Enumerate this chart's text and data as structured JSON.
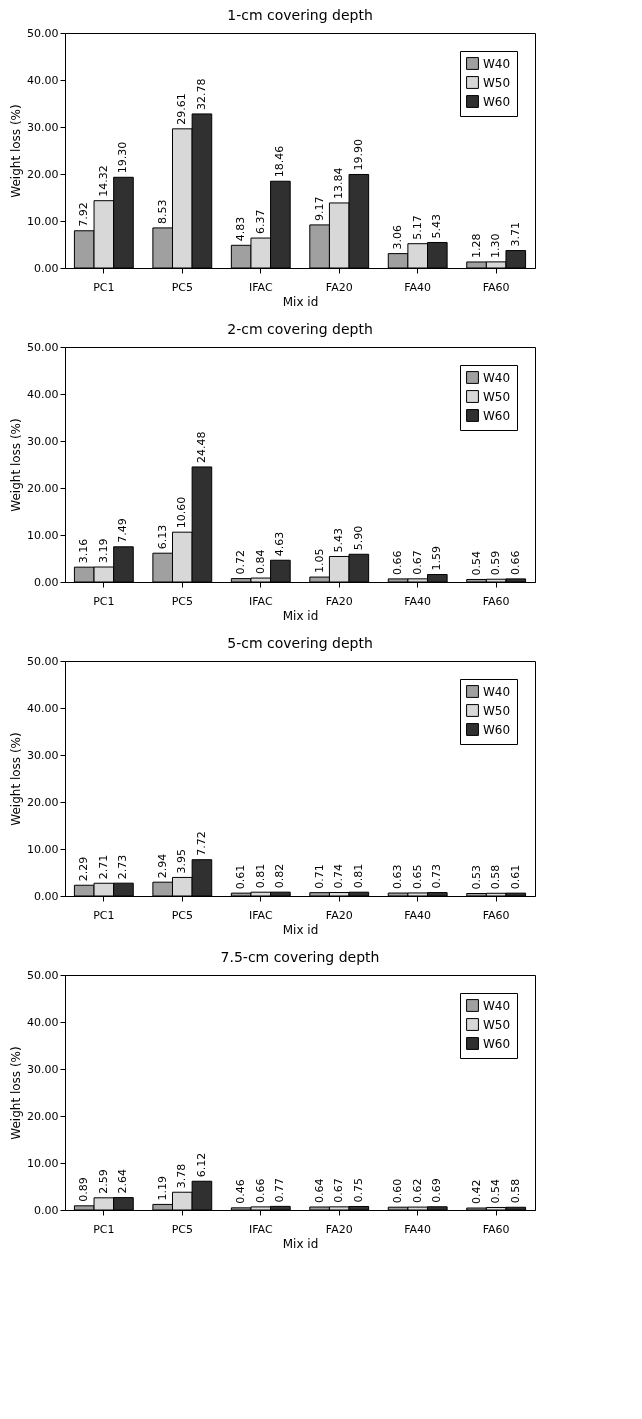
{
  "chart_data": [
    {
      "type": "bar",
      "title": "1-cm covering depth",
      "xlabel": "Mix id",
      "ylabel": "Weight loss (%)",
      "categories": [
        "PC1",
        "PC5",
        "IFAC",
        "FA20",
        "FA40",
        "FA60"
      ],
      "ylim": [
        0,
        50
      ],
      "yticks": [
        {
          "value": 0,
          "label": "0.00"
        },
        {
          "value": 10,
          "label": "10.00"
        },
        {
          "value": 20,
          "label": "20.00"
        },
        {
          "value": 30,
          "label": "30.00"
        },
        {
          "value": 40,
          "label": "40.00"
        },
        {
          "value": 50,
          "label": "50.00"
        }
      ],
      "legend": "top right",
      "series": [
        {
          "name": "W40",
          "color": "#a0a0a0",
          "values": [
            7.92,
            8.53,
            4.83,
            9.17,
            3.06,
            1.28
          ],
          "value_labels": [
            "7.92",
            "8.53",
            "4.83",
            "9.17",
            "3.06",
            "1.28"
          ]
        },
        {
          "name": "W50",
          "color": "#d8d8d8",
          "values": [
            14.32,
            29.61,
            6.37,
            13.84,
            5.17,
            1.3
          ],
          "value_labels": [
            "14.32",
            "29.61",
            "6.37",
            "13.84",
            "5.17",
            "1.30"
          ]
        },
        {
          "name": "W60",
          "color": "#303030",
          "values": [
            19.3,
            32.78,
            18.46,
            19.9,
            5.43,
            3.71
          ],
          "value_labels": [
            "19.30",
            "32.78",
            "18.46",
            "19.90",
            "5.43",
            "3.71"
          ]
        }
      ]
    },
    {
      "type": "bar",
      "title": "2-cm covering depth",
      "xlabel": "Mix id",
      "ylabel": "Weight loss (%)",
      "categories": [
        "PC1",
        "PC5",
        "IFAC",
        "FA20",
        "FA40",
        "FA60"
      ],
      "ylim": [
        0,
        50
      ],
      "yticks": [
        {
          "value": 0,
          "label": "0.00"
        },
        {
          "value": 10,
          "label": "10.00"
        },
        {
          "value": 20,
          "label": "20.00"
        },
        {
          "value": 30,
          "label": "30.00"
        },
        {
          "value": 40,
          "label": "40.00"
        },
        {
          "value": 50,
          "label": "50.00"
        }
      ],
      "legend": "top right",
      "series": [
        {
          "name": "W40",
          "color": "#a0a0a0",
          "values": [
            3.16,
            6.13,
            0.72,
            1.05,
            0.66,
            0.54
          ],
          "value_labels": [
            "3.16",
            "6.13",
            "0.72",
            "1.05",
            "0.66",
            "0.54"
          ]
        },
        {
          "name": "W50",
          "color": "#d8d8d8",
          "values": [
            3.19,
            10.6,
            0.84,
            5.43,
            0.67,
            0.59
          ],
          "value_labels": [
            "3.19",
            "10.60",
            "0.84",
            "5.43",
            "0.67",
            "0.59"
          ]
        },
        {
          "name": "W60",
          "color": "#303030",
          "values": [
            7.49,
            24.48,
            4.63,
            5.9,
            1.59,
            0.66
          ],
          "value_labels": [
            "7.49",
            "24.48",
            "4.63",
            "5.90",
            "1.59",
            "0.66"
          ]
        }
      ]
    },
    {
      "type": "bar",
      "title": "5-cm covering depth",
      "xlabel": "Mix id",
      "ylabel": "Weight loss (%)",
      "categories": [
        "PC1",
        "PC5",
        "IFAC",
        "FA20",
        "FA40",
        "FA60"
      ],
      "ylim": [
        0,
        50
      ],
      "yticks": [
        {
          "value": 0,
          "label": "0.00"
        },
        {
          "value": 10,
          "label": "10.00"
        },
        {
          "value": 20,
          "label": "20.00"
        },
        {
          "value": 30,
          "label": "30.00"
        },
        {
          "value": 40,
          "label": "40.00"
        },
        {
          "value": 50,
          "label": "50.00"
        }
      ],
      "legend": "top right",
      "series": [
        {
          "name": "W40",
          "color": "#a0a0a0",
          "values": [
            2.29,
            2.94,
            0.61,
            0.71,
            0.63,
            0.53
          ],
          "value_labels": [
            "2.29",
            "2.94",
            "0.61",
            "0.71",
            "0.63",
            "0.53"
          ]
        },
        {
          "name": "W50",
          "color": "#d8d8d8",
          "values": [
            2.71,
            3.95,
            0.81,
            0.74,
            0.65,
            0.58
          ],
          "value_labels": [
            "2.71",
            "3.95",
            "0.81",
            "0.74",
            "0.65",
            "0.58"
          ]
        },
        {
          "name": "W60",
          "color": "#303030",
          "values": [
            2.73,
            7.72,
            0.82,
            0.81,
            0.73,
            0.61
          ],
          "value_labels": [
            "2.73",
            "7.72",
            "0.82",
            "0.81",
            "0.73",
            "0.61"
          ]
        }
      ]
    },
    {
      "type": "bar",
      "title": "7.5-cm covering depth",
      "xlabel": "Mix id",
      "ylabel": "Weight loss (%)",
      "categories": [
        "PC1",
        "PC5",
        "IFAC",
        "FA20",
        "FA40",
        "FA60"
      ],
      "ylim": [
        0,
        50
      ],
      "yticks": [
        {
          "value": 0,
          "label": "0.00"
        },
        {
          "value": 10,
          "label": "10.00"
        },
        {
          "value": 20,
          "label": "20.00"
        },
        {
          "value": 30,
          "label": "30.00"
        },
        {
          "value": 40,
          "label": "40.00"
        },
        {
          "value": 50,
          "label": "50.00"
        }
      ],
      "legend": "top right",
      "series": [
        {
          "name": "W40",
          "color": "#a0a0a0",
          "values": [
            0.89,
            1.19,
            0.46,
            0.64,
            0.6,
            0.42
          ],
          "value_labels": [
            "0.89",
            "1.19",
            "0.46",
            "0.64",
            "0.60",
            "0.42"
          ]
        },
        {
          "name": "W50",
          "color": "#d8d8d8",
          "values": [
            2.59,
            3.78,
            0.66,
            0.67,
            0.62,
            0.54
          ],
          "value_labels": [
            "2.59",
            "3.78",
            "0.66",
            "0.67",
            "0.62",
            "0.54"
          ]
        },
        {
          "name": "W60",
          "color": "#303030",
          "values": [
            2.64,
            6.12,
            0.77,
            0.75,
            0.69,
            0.58
          ],
          "value_labels": [
            "2.64",
            "6.12",
            "0.77",
            "0.75",
            "0.69",
            "0.58"
          ]
        }
      ]
    }
  ]
}
